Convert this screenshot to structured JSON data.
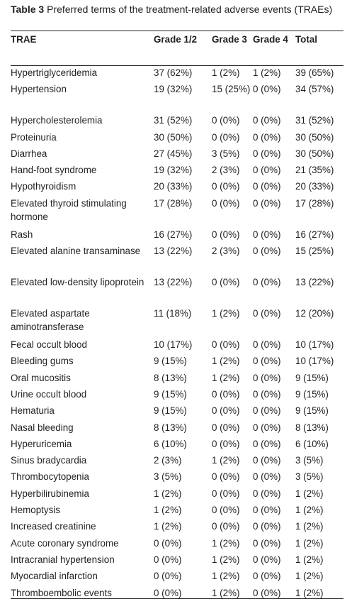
{
  "caption": {
    "label": "Table 3",
    "text": "Preferred terms of the treatment-related adverse events (TRAEs)"
  },
  "headers": [
    "TRAE",
    "Grade 1/2",
    "Grade 3",
    "Grade 4",
    "Total"
  ],
  "rows": [
    {
      "trae": "Hypertriglyceridemia",
      "g12": "37 (62%)",
      "g3": "1 (2%)",
      "g4": "1 (2%)",
      "total": "39 (65%)"
    },
    {
      "trae": "Hypertension",
      "g12": "19 (32%)",
      "g3": "15 (25%)",
      "g4": "0 (0%)",
      "total": "34 (57%)"
    },
    {
      "trae": "Hypercholesterolemia",
      "g12": "31 (52%)",
      "g3": "0 (0%)",
      "g4": "0 (0%)",
      "total": "31 (52%)"
    },
    {
      "trae": "Proteinuria",
      "g12": "30 (50%)",
      "g3": "0 (0%)",
      "g4": "0 (0%)",
      "total": "30 (50%)"
    },
    {
      "trae": "Diarrhea",
      "g12": "27 (45%)",
      "g3": "3 (5%)",
      "g4": "0 (0%)",
      "total": "30 (50%)"
    },
    {
      "trae": "Hand-foot syndrome",
      "g12": "19 (32%)",
      "g3": "2 (3%)",
      "g4": "0 (0%)",
      "total": "21 (35%)"
    },
    {
      "trae": "Hypothyroidism",
      "g12": "20 (33%)",
      "g3": "0 (0%)",
      "g4": "0 (0%)",
      "total": "20 (33%)"
    },
    {
      "trae": "Elevated thyroid stimulating hormone",
      "g12": "17 (28%)",
      "g3": "0 (0%)",
      "g4": "0 (0%)",
      "total": "17 (28%)"
    },
    {
      "trae": "Rash",
      "g12": "16 (27%)",
      "g3": "0 (0%)",
      "g4": "0 (0%)",
      "total": "16 (27%)"
    },
    {
      "trae": "Elevated alanine transaminase",
      "g12": "13 (22%)",
      "g3": "2 (3%)",
      "g4": "0 (0%)",
      "total": "15 (25%)"
    },
    {
      "trae": "Elevated low-density lipoprotein",
      "g12": "13 (22%)",
      "g3": "0 (0%)",
      "g4": "0 (0%)",
      "total": "13 (22%)"
    },
    {
      "trae": "Elevated aspartate aminotransferase",
      "g12": "11 (18%)",
      "g3": "1 (2%)",
      "g4": "0 (0%)",
      "total": "12 (20%)"
    },
    {
      "trae": "Fecal occult blood",
      "g12": "10 (17%)",
      "g3": "0 (0%)",
      "g4": "0 (0%)",
      "total": "10 (17%)"
    },
    {
      "trae": "Bleeding gums",
      "g12": "9 (15%)",
      "g3": "1 (2%)",
      "g4": "0 (0%)",
      "total": "10 (17%)"
    },
    {
      "trae": "Oral mucositis",
      "g12": "8 (13%)",
      "g3": "1 (2%)",
      "g4": "0 (0%)",
      "total": "9 (15%)"
    },
    {
      "trae": "Urine occult blood",
      "g12": "9 (15%)",
      "g3": "0 (0%)",
      "g4": "0 (0%)",
      "total": "9 (15%)"
    },
    {
      "trae": "Hematuria",
      "g12": "9 (15%)",
      "g3": "0 (0%)",
      "g4": "0 (0%)",
      "total": "9 (15%)"
    },
    {
      "trae": "Nasal bleeding",
      "g12": "8 (13%)",
      "g3": "0 (0%)",
      "g4": "0 (0%)",
      "total": "8 (13%)"
    },
    {
      "trae": "Hyperuricemia",
      "g12": "6 (10%)",
      "g3": "0 (0%)",
      "g4": "0 (0%)",
      "total": "6 (10%)"
    },
    {
      "trae": "Sinus bradycardia",
      "g12": "2 (3%)",
      "g3": "1 (2%)",
      "g4": "0 (0%)",
      "total": "3 (5%)"
    },
    {
      "trae": "Thrombocytopenia",
      "g12": "3 (5%)",
      "g3": "0 (0%)",
      "g4": "0 (0%)",
      "total": "3 (5%)"
    },
    {
      "trae": "Hyperbilirubinemia",
      "g12": "1 (2%)",
      "g3": "0 (0%)",
      "g4": "0 (0%)",
      "total": "1 (2%)"
    },
    {
      "trae": "Hemoptysis",
      "g12": "1 (2%)",
      "g3": "0 (0%)",
      "g4": "0 (0%)",
      "total": "1 (2%)"
    },
    {
      "trae": "Increased creatinine",
      "g12": "1 (2%)",
      "g3": "0 (0%)",
      "g4": "0 (0%)",
      "total": "1 (2%)"
    },
    {
      "trae": "Acute coronary syndrome",
      "g12": "0 (0%)",
      "g3": "1 (2%)",
      "g4": "0 (0%)",
      "total": "1 (2%)"
    },
    {
      "trae": "Intracranial hypertension",
      "g12": "0 (0%)",
      "g3": "1 (2%)",
      "g4": "0 (0%)",
      "total": "1 (2%)"
    },
    {
      "trae": "Myocardial infarction",
      "g12": "0 (0%)",
      "g3": "1 (2%)",
      "g4": "0 (0%)",
      "total": "1 (2%)"
    },
    {
      "trae": "Thromboembolic events",
      "g12": "0 (0%)",
      "g3": "1 (2%)",
      "g4": "0 (0%)",
      "total": "1 (2%)"
    }
  ]
}
